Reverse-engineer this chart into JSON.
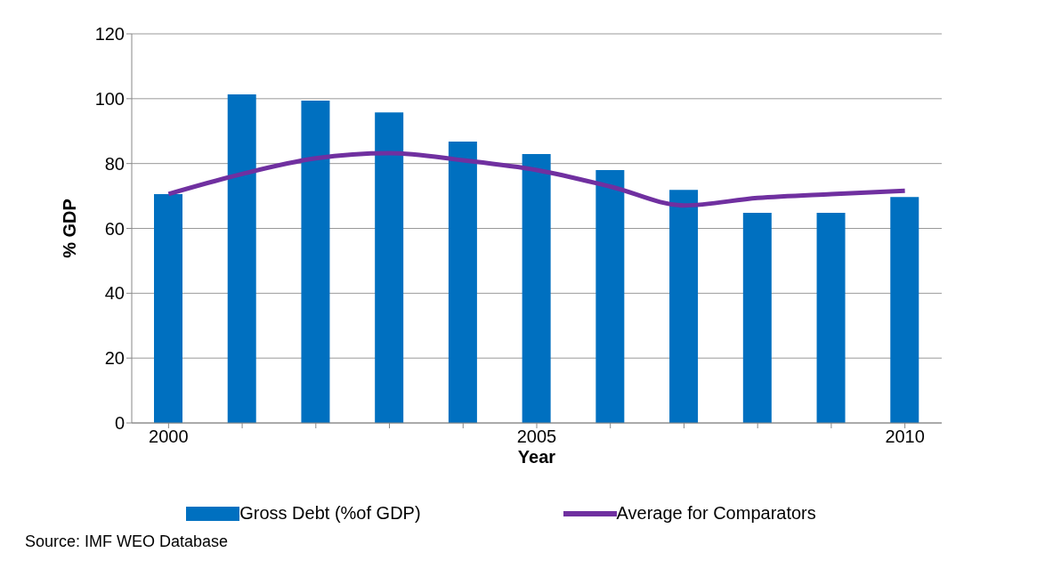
{
  "chart_data": {
    "type": "bar",
    "xlabel": "Year",
    "ylabel": "% GDP",
    "categories": [
      "2000",
      null,
      null,
      null,
      null,
      "2005",
      null,
      null,
      null,
      null,
      "2010"
    ],
    "series": [
      {
        "name": "Gross Debt (%of GDP)",
        "color": "#0070c0",
        "values": [
          70.6,
          101.3,
          99.4,
          95.8,
          86.8,
          82.9,
          78,
          71.9,
          64.8,
          64.8,
          69.7
        ]
      },
      {
        "name": "Average for Comparators",
        "type": "line",
        "color": "#7030a0",
        "values": [
          70.6,
          76.8,
          81.6,
          83.2,
          81,
          78,
          72.9,
          67.1,
          69.4,
          70.6,
          71.6
        ]
      }
    ],
    "ylim": [
      0,
      120
    ],
    "yticks": [
      0,
      20,
      40,
      60,
      80,
      100,
      120
    ],
    "grid": "y",
    "legend": "bottom",
    "marker": "none",
    "annotations": [
      "Source: IMF WEO Database"
    ]
  }
}
